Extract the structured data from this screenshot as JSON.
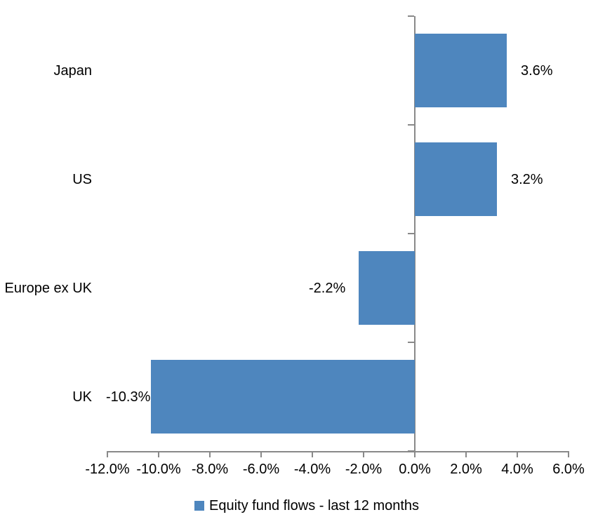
{
  "chart_data": {
    "type": "bar",
    "orientation": "horizontal",
    "title": "",
    "categories": [
      "Japan",
      "US",
      "Europe ex UK",
      "UK"
    ],
    "series": [
      {
        "name": "Equity fund flows - last 12 months",
        "values": [
          3.6,
          3.2,
          -2.2,
          -10.3
        ],
        "data_labels": [
          "3.6%",
          "3.2%",
          "-2.2%",
          "-10.3%"
        ]
      }
    ],
    "xlabel": "",
    "ylabel": "",
    "xlim": [
      -12,
      6
    ],
    "x_tick_interval": 2,
    "x_tick_labels": [
      "-12.0%",
      "-10.0%",
      "-8.0%",
      "-6.0%",
      "-4.0%",
      "-2.0%",
      "0.0%",
      "2.0%",
      "4.0%",
      "6.0%"
    ],
    "grid": false,
    "legend_position": "bottom",
    "data_label_position": "outside-end",
    "colors": {
      "bar": "#4E86BE",
      "axis": "#898989",
      "text": "#000000",
      "background": "#FFFFFF"
    }
  },
  "legend": {
    "label": "Equity fund flows - last 12 months"
  }
}
